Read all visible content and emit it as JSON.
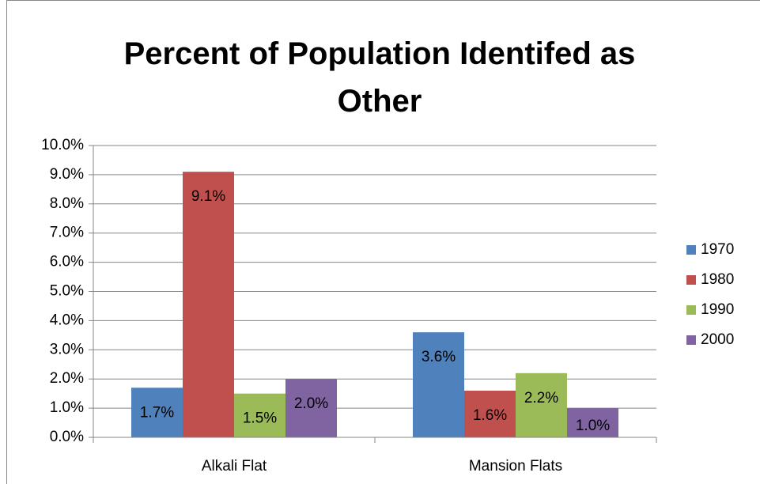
{
  "chart_data": {
    "type": "bar",
    "title": "Percent of Population Identifed as Other",
    "categories": [
      "Alkali Flat",
      "Mansion Flats"
    ],
    "series": [
      {
        "name": "1970",
        "color": "#4f81bd",
        "values": [
          1.7,
          3.6
        ],
        "value_labels": [
          "1.7%",
          "3.6%"
        ]
      },
      {
        "name": "1980",
        "color": "#c0504d",
        "values": [
          9.1,
          1.6
        ],
        "value_labels": [
          "9.1%",
          "1.6%"
        ]
      },
      {
        "name": "1990",
        "color": "#9bbb59",
        "values": [
          1.5,
          2.2
        ],
        "value_labels": [
          "1.5%",
          "2.2%"
        ]
      },
      {
        "name": "2000",
        "color": "#8064a2",
        "values": [
          2.0,
          1.0
        ],
        "value_labels": [
          "2.0%",
          "1.0%"
        ]
      }
    ],
    "ylim": [
      0,
      10
    ],
    "yticks": [
      {
        "value": 0,
        "label": "0.0%"
      },
      {
        "value": 1,
        "label": "1.0%"
      },
      {
        "value": 2,
        "label": "2.0%"
      },
      {
        "value": 3,
        "label": "3.0%"
      },
      {
        "value": 4,
        "label": "4.0%"
      },
      {
        "value": 5,
        "label": "5.0%"
      },
      {
        "value": 6,
        "label": "6.0%"
      },
      {
        "value": 7,
        "label": "7.0%"
      },
      {
        "value": 8,
        "label": "8.0%"
      },
      {
        "value": 9,
        "label": "9.0%"
      },
      {
        "value": 10,
        "label": "10.0%"
      }
    ],
    "grid": true,
    "legend": "right"
  }
}
